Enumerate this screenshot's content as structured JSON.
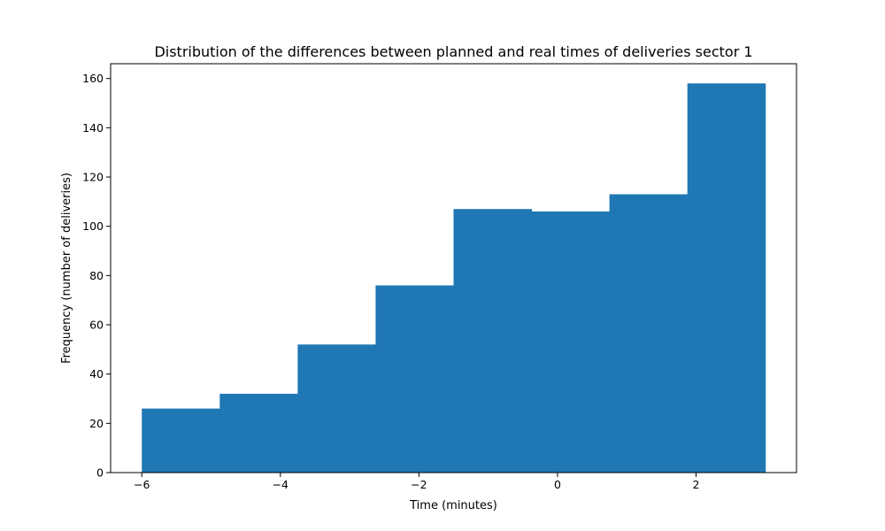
{
  "chart_data": {
    "type": "bar",
    "title": "Distribution of the differences between planned and real times of deliveries sector 1",
    "xlabel": "Time (minutes)",
    "ylabel": "Frequency (number of deliveries)",
    "bin_edges": [
      -6.0,
      -4.875,
      -3.75,
      -2.625,
      -1.5,
      -0.375,
      0.75,
      1.875,
      3.0
    ],
    "values": [
      26,
      32,
      52,
      76,
      107,
      106,
      113,
      158
    ],
    "xlim": [
      -6.45,
      3.45
    ],
    "ylim": [
      0,
      166
    ],
    "xticks": [
      -6,
      -4,
      -2,
      0,
      2
    ],
    "xtick_labels": [
      "−6",
      "−4",
      "−2",
      "0",
      "2"
    ],
    "yticks": [
      0,
      20,
      40,
      60,
      80,
      100,
      120,
      140,
      160
    ],
    "ytick_labels": [
      "0",
      "20",
      "40",
      "60",
      "80",
      "100",
      "120",
      "140",
      "160"
    ],
    "bar_color": "#1f77b4",
    "grid": false,
    "legend": "none"
  }
}
